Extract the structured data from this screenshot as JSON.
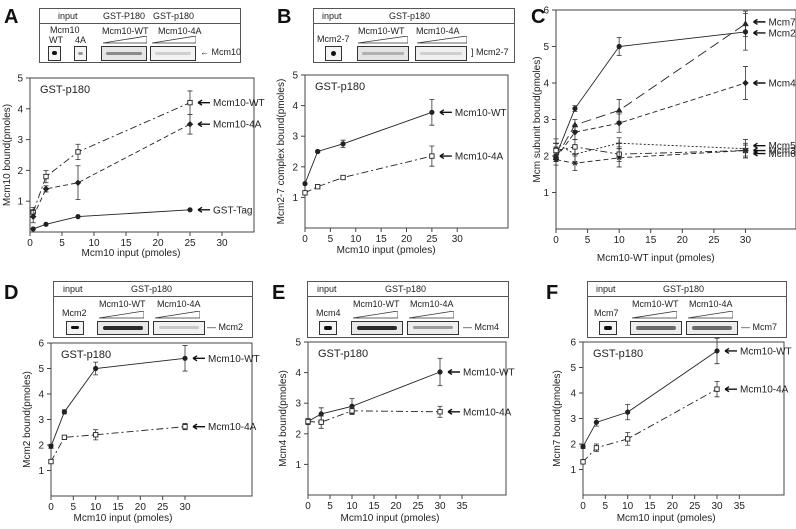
{
  "panels": {
    "A": {
      "letter": "A",
      "blot": {
        "header_left": "input",
        "header_mid": "GST-P180",
        "header_right": "GST-p180",
        "input_label": "Mcm10",
        "lane_wt": "WT",
        "lane_4a": "4A",
        "group1": "Mcm10-WT",
        "group2": "Mcm10-4A",
        "band_label": "Mcm10"
      }
    },
    "B": {
      "letter": "B",
      "blot": {
        "header_left": "input",
        "header_mid": "GST-p180",
        "input_label": "Mcm2-7",
        "group1": "Mcm10-WT",
        "group2": "Mcm10-4A",
        "band_label": "Mcm2-7"
      }
    },
    "C": {
      "letter": "C"
    },
    "D": {
      "letter": "D",
      "blot": {
        "header_left": "input",
        "header_mid": "GST-p180",
        "input_label": "Mcm2",
        "group1": "Mcm10-WT",
        "group2": "Mcm10-4A",
        "band_label": "Mcm2"
      }
    },
    "E": {
      "letter": "E",
      "blot": {
        "header_left": "input",
        "header_mid": "GST-p180",
        "input_label": "Mcm4",
        "group1": "Mcm10-WT",
        "group2": "Mcm10-4A",
        "band_label": "Mcm4"
      }
    },
    "F": {
      "letter": "F",
      "blot": {
        "header_left": "input",
        "header_mid": "GST-p180",
        "input_label": "Mcm7",
        "group1": "Mcm10-WT",
        "group2": "Mcm10-4A",
        "band_label": "Mcm7"
      }
    }
  },
  "chart_data": [
    {
      "id": "A",
      "type": "line",
      "title": "GST-p180",
      "xlabel": "Mcm10 input (pmoles)",
      "ylabel": "Mcm10 bound(pmoles)",
      "xlim": [
        0,
        35
      ],
      "ylim": [
        0,
        5
      ],
      "xticks": [
        0,
        5,
        10,
        15,
        20,
        25,
        30
      ],
      "yticks": [
        1,
        2,
        3,
        4,
        5
      ],
      "series": [
        {
          "name": "Mcm10-WT",
          "style": "dashdot",
          "marker": "square",
          "x": [
            0.5,
            2.5,
            7.5,
            25
          ],
          "y": [
            0.65,
            1.8,
            2.6,
            4.2
          ],
          "err": [
            0.15,
            0.2,
            0.25,
            0.38
          ]
        },
        {
          "name": "Mcm10-4A",
          "style": "dashed",
          "marker": "diamond",
          "x": [
            0.5,
            2.5,
            7.5,
            25
          ],
          "y": [
            0.5,
            1.4,
            1.6,
            3.5
          ],
          "err": [
            0.2,
            0.1,
            0.55,
            0.32
          ]
        },
        {
          "name": "GST-Tag",
          "style": "solid",
          "marker": "circle",
          "x": [
            0.5,
            2.5,
            7.5,
            25
          ],
          "y": [
            0.1,
            0.25,
            0.5,
            0.72
          ],
          "err": [
            0,
            0,
            0,
            0
          ]
        }
      ]
    },
    {
      "id": "B",
      "type": "line",
      "title": "GST-p180",
      "xlabel": "Mcm10 input (pmoles)",
      "ylabel": "Mcm2-7 complex bound(pmoles)",
      "xlim": [
        0,
        40
      ],
      "ylim": [
        0,
        5
      ],
      "xticks": [
        0,
        5,
        10,
        15,
        20,
        25,
        30
      ],
      "yticks": [
        1,
        2,
        3,
        4,
        5
      ],
      "series": [
        {
          "name": "Mcm10-WT",
          "style": "solid",
          "marker": "circle",
          "x": [
            0,
            2.5,
            7.5,
            25
          ],
          "y": [
            1.45,
            2.5,
            2.75,
            3.78
          ],
          "err": [
            0,
            0.04,
            0.12,
            0.42
          ]
        },
        {
          "name": "Mcm10-4A",
          "style": "dashdot",
          "marker": "square",
          "x": [
            0,
            2.5,
            7.5,
            25
          ],
          "y": [
            1.15,
            1.35,
            1.65,
            2.35
          ],
          "err": [
            0.05,
            0.04,
            0.04,
            0.33
          ]
        }
      ]
    },
    {
      "id": "C",
      "type": "line",
      "title": "",
      "xlabel": "Mcm10-WT input (pmoles)",
      "ylabel": "Mcm subunit bound(pmoles)",
      "xlim": [
        0,
        38
      ],
      "ylim": [
        0,
        6
      ],
      "xticks": [
        0,
        5,
        10,
        15,
        20,
        25,
        30
      ],
      "yticks": [
        1,
        2,
        3,
        4,
        5,
        6
      ],
      "series": [
        {
          "name": "Mcm7",
          "style": "longdash",
          "marker": "triangle",
          "x": [
            0,
            3,
            10,
            30
          ],
          "y": [
            1.95,
            2.85,
            3.25,
            5.62
          ],
          "err": [
            0.1,
            0.15,
            0.3,
            0.35
          ]
        },
        {
          "name": "Mcm2",
          "style": "solid",
          "marker": "circle",
          "x": [
            0,
            3,
            10,
            30
          ],
          "y": [
            2.0,
            3.3,
            5.0,
            5.4
          ],
          "err": [
            0.1,
            0.08,
            0.25,
            0.5
          ]
        },
        {
          "name": "Mcm4",
          "style": "dashed",
          "marker": "diamond",
          "x": [
            0,
            3,
            10,
            30
          ],
          "y": [
            1.95,
            2.65,
            2.9,
            4.0
          ],
          "err": [
            0.1,
            0.2,
            0.25,
            0.45
          ]
        },
        {
          "name": "Mcm5",
          "style": "dotted",
          "marker": "plus",
          "x": [
            0,
            3,
            10,
            30
          ],
          "y": [
            2.35,
            2.05,
            2.35,
            2.2
          ],
          "err": [
            0.12,
            0.2,
            0.15,
            0.25
          ]
        },
        {
          "name": "Mcm3",
          "style": "dashdot",
          "marker": "square",
          "x": [
            0,
            3,
            10,
            30
          ],
          "y": [
            2.15,
            2.25,
            2.05,
            2.15
          ],
          "err": [
            0.1,
            0.2,
            0.2,
            0.15
          ]
        },
        {
          "name": "Mcm6",
          "style": "dashed",
          "marker": "star",
          "x": [
            0,
            3,
            10,
            30
          ],
          "y": [
            1.9,
            1.8,
            1.95,
            2.15
          ],
          "err": [
            0.15,
            0.2,
            0.25,
            0.2
          ]
        }
      ]
    },
    {
      "id": "D",
      "type": "line",
      "title": "GST-p180",
      "xlabel": "Mcm10 input (pmoles)",
      "ylabel": "Mcm2 bound(pmoles)",
      "xlim": [
        0,
        45
      ],
      "ylim": [
        0,
        6
      ],
      "xticks": [
        0,
        5,
        10,
        15,
        20,
        25,
        30
      ],
      "yticks": [
        1,
        2,
        3,
        4,
        5,
        6
      ],
      "series": [
        {
          "name": "Mcm10-WT",
          "style": "solid",
          "marker": "circle",
          "x": [
            0,
            3,
            10,
            30
          ],
          "y": [
            1.95,
            3.3,
            5.0,
            5.4
          ],
          "err": [
            0.08,
            0.08,
            0.25,
            0.5
          ]
        },
        {
          "name": "Mcm10-4A",
          "style": "dashdot",
          "marker": "square",
          "x": [
            0,
            3,
            10,
            30
          ],
          "y": [
            1.35,
            2.3,
            2.4,
            2.72
          ],
          "err": [
            0.08,
            0.06,
            0.2,
            0.12
          ]
        }
      ]
    },
    {
      "id": "E",
      "type": "line",
      "title": "GST-p180",
      "xlabel": "Mcm10 input (pmoles)",
      "ylabel": "Mcm4 bound(pmoles)",
      "xlim": [
        0,
        45
      ],
      "ylim": [
        0,
        5
      ],
      "xticks": [
        0,
        5,
        10,
        15,
        20,
        25,
        30,
        35
      ],
      "yticks": [
        1,
        2,
        3,
        4,
        5
      ],
      "series": [
        {
          "name": "Mcm10-WT",
          "style": "solid",
          "marker": "circle",
          "x": [
            0,
            3,
            10,
            30
          ],
          "y": [
            2.4,
            2.65,
            2.9,
            4.02
          ],
          "err": [
            0.08,
            0.2,
            0.25,
            0.45
          ]
        },
        {
          "name": "Mcm10-4A",
          "style": "dashdot",
          "marker": "square",
          "x": [
            0,
            3,
            10,
            30
          ],
          "y": [
            2.4,
            2.38,
            2.75,
            2.72
          ],
          "err": [
            0.1,
            0.2,
            0.12,
            0.18
          ]
        }
      ]
    },
    {
      "id": "F",
      "type": "line",
      "title": "GST-p180",
      "xlabel": "Mcm10 input (pmoles)",
      "ylabel": "Mcm7 bound(pmoles)",
      "xlim": [
        0,
        45
      ],
      "ylim": [
        0,
        6
      ],
      "xticks": [
        0,
        5,
        10,
        15,
        20,
        25,
        30,
        35
      ],
      "yticks": [
        1,
        2,
        3,
        4,
        5,
        6
      ],
      "series": [
        {
          "name": "Mcm10-WT",
          "style": "solid",
          "marker": "circle",
          "x": [
            0,
            3,
            10,
            30
          ],
          "y": [
            1.9,
            2.85,
            3.25,
            5.65
          ],
          "err": [
            0.08,
            0.15,
            0.3,
            0.5
          ]
        },
        {
          "name": "Mcm10-4A",
          "style": "dashdot",
          "marker": "square",
          "x": [
            0,
            3,
            10,
            30
          ],
          "y": [
            1.3,
            1.85,
            2.2,
            4.15
          ],
          "err": [
            0.08,
            0.15,
            0.25,
            0.3
          ]
        }
      ]
    }
  ]
}
